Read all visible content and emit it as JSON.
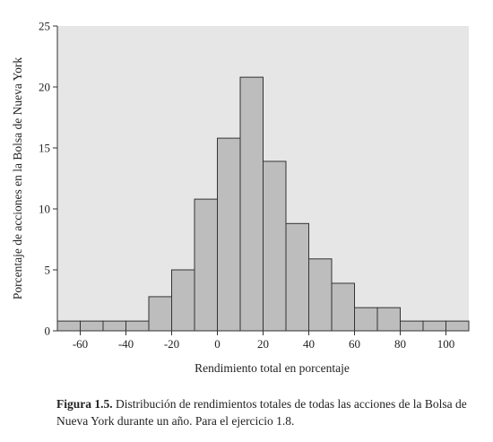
{
  "chart_data": {
    "type": "bar",
    "bin_edges": [
      -70,
      -60,
      -50,
      -40,
      -30,
      -20,
      -10,
      0,
      10,
      20,
      30,
      40,
      50,
      60,
      70,
      80,
      90,
      100,
      110
    ],
    "values": [
      0.8,
      0.8,
      0.8,
      0.8,
      2.8,
      5.0,
      10.8,
      15.8,
      20.8,
      13.9,
      8.8,
      5.9,
      3.9,
      1.9,
      1.9,
      0.8,
      0.8,
      0.8
    ],
    "xlabel": "Rendimiento total en porcentaje",
    "ylabel": "Porcentaje de acciones en la Bolsa de Nueva York",
    "xlim": [
      -70,
      110
    ],
    "ylim": [
      0,
      25
    ],
    "xticks": [
      -60,
      -40,
      -20,
      0,
      20,
      40,
      60,
      80,
      100
    ],
    "yticks": [
      0,
      5,
      10,
      15,
      20,
      25
    ],
    "grid": false,
    "colors": {
      "plot_background": "#e6e6e6",
      "bar_fill": "#bdbdbd",
      "bar_stroke": "#333333"
    }
  },
  "caption": {
    "label": "Figura 1.5.",
    "text": "Distribución de rendimientos totales de todas las acciones de la Bolsa de Nueva York durante un año. Para el ejercicio 1.8."
  }
}
